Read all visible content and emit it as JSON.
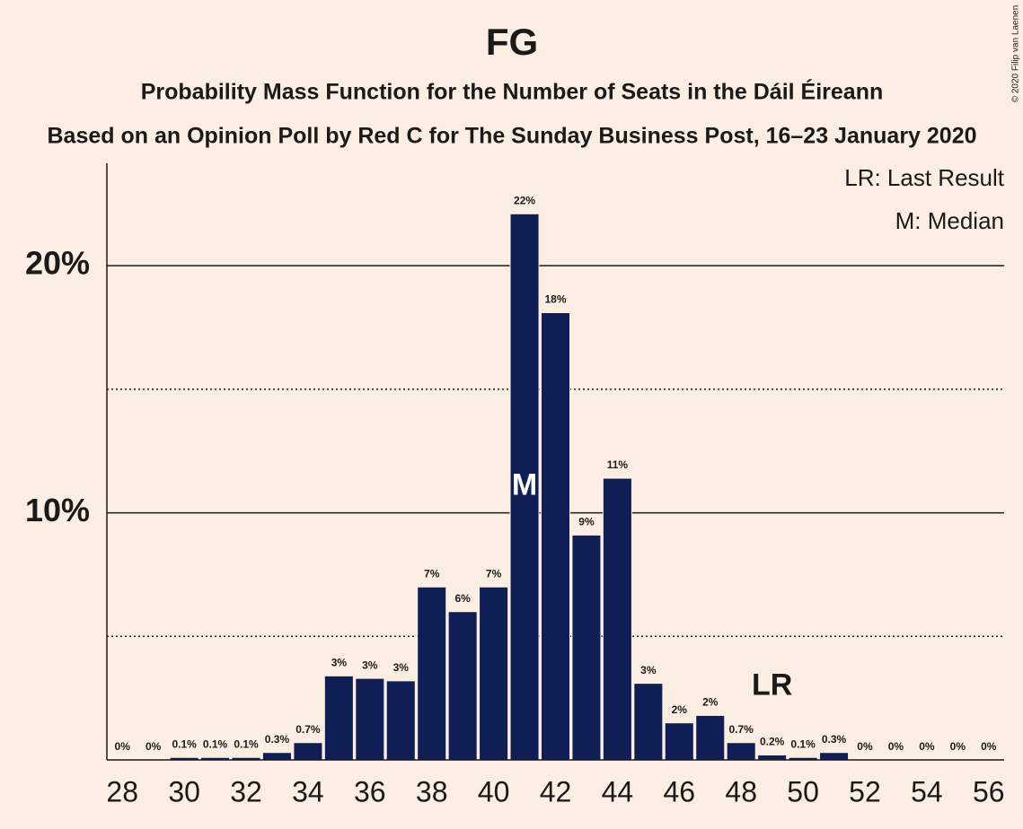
{
  "chart_data": {
    "type": "bar",
    "title": "FG",
    "subtitle": "Probability Mass Function for the Number of Seats in the Dáil Éireann",
    "subtitle2": "Based on an Opinion Poll by Red C for The Sunday Business Post, 16–23 January 2020",
    "copyright": "© 2020 Filip van Laenen",
    "legend": [
      "LR: Last Result",
      "M: Median"
    ],
    "x": [
      28,
      29,
      30,
      31,
      32,
      33,
      34,
      35,
      36,
      37,
      38,
      39,
      40,
      41,
      42,
      43,
      44,
      45,
      46,
      47,
      48,
      49,
      50,
      51,
      52,
      53,
      54,
      55,
      56
    ],
    "values": [
      0,
      0,
      0.1,
      0.1,
      0.1,
      0.3,
      0.7,
      3.4,
      3.3,
      3.2,
      7.0,
      6.0,
      7.0,
      22.1,
      18.1,
      9.1,
      11.4,
      3.1,
      1.5,
      1.8,
      0.7,
      0.2,
      0.1,
      0.3,
      0,
      0,
      0,
      0,
      0
    ],
    "value_labels": [
      "0%",
      "0%",
      "0.1%",
      "0.1%",
      "0.1%",
      "0.3%",
      "0.7%",
      "3%",
      "3%",
      "3%",
      "7%",
      "6%",
      "7%",
      "22%",
      "18%",
      "9%",
      "11%",
      "3%",
      "2%",
      "2%",
      "0.7%",
      "0.2%",
      "0.1%",
      "0.3%",
      "0%",
      "0%",
      "0%",
      "0%",
      "0%"
    ],
    "color": "#0f1f55",
    "xlim": [
      27.5,
      56.5
    ],
    "xticks": [
      28,
      30,
      32,
      34,
      36,
      38,
      40,
      42,
      44,
      46,
      48,
      50,
      52,
      54,
      56
    ],
    "ylim": [
      0,
      24
    ],
    "yticks": [
      {
        "value": 10,
        "label": "10%"
      },
      {
        "value": 20,
        "label": "20%"
      }
    ],
    "yminorticks": [
      5,
      15
    ],
    "grid": true,
    "median": {
      "x": 41,
      "label": "M"
    },
    "last_result": {
      "x": 49,
      "label": "LR"
    }
  }
}
